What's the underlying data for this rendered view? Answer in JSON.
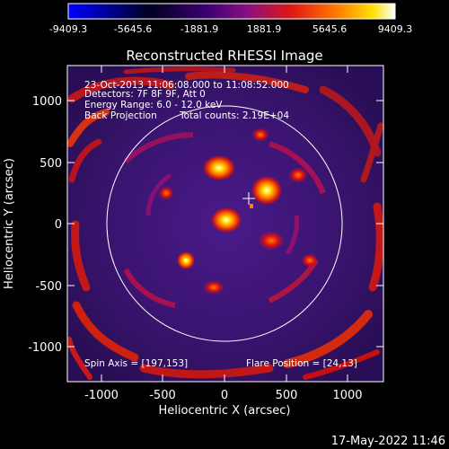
{
  "colorbar": {
    "ticks": [
      "-9409.3",
      "-5645.6",
      "-1881.9",
      "1881.9",
      "5645.6",
      "9409.3"
    ],
    "colors": [
      "#0000ff",
      "#000000",
      "#2a0060",
      "#7a1088",
      "#e01010",
      "#ff7000",
      "#ffff00",
      "#ffffff"
    ]
  },
  "title": "Reconstructed RHESSI Image",
  "annotations": {
    "line1": "23-Oct-2013 11:06:08.000 to 11:08:52.000",
    "line2": "Detectors: 7F 8F 9F, Att 0",
    "line3": "Energy Range: 6.0 - 12.0 keV",
    "line4a": "Back Projection",
    "line4b": "Total counts: 2.19E+04",
    "spin_axis": "Spin Axis = [197,153]",
    "flare_position": "Flare Position = [24,13]"
  },
  "axes": {
    "xlabel": "Heliocentric X (arcsec)",
    "ylabel": "Heliocentric Y (arcsec)",
    "xticks": [
      "-1000",
      "-500",
      "0",
      "500",
      "1000"
    ],
    "yticks": [
      "1000",
      "500",
      "0",
      "-500",
      "-1000"
    ]
  },
  "timestamp": "17-May-2022 11:46"
}
